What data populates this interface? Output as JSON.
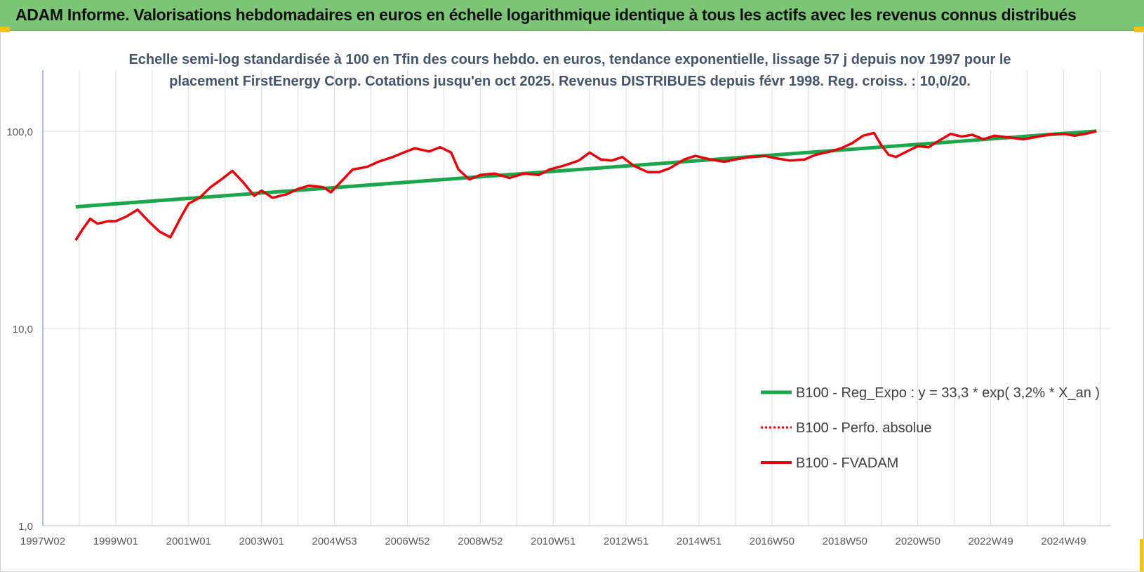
{
  "banner": {
    "title": "ADAM Informe. Valorisations hebdomadaires en euros en échelle logarithmique identique à tous les actifs avec les revenus connus distribués"
  },
  "colors": {
    "banner_bg": "#7cc576",
    "trend": "#1aa64a",
    "series": "#e8000b",
    "corner_marks": "#f2c21b"
  },
  "chart_data": {
    "type": "line",
    "subtitle_lines": [
      "Echelle semi-log standardisée à 100 en Tfin des cours hebdo. en euros, tendance exponentielle, lissage 57 j depuis nov 1997 pour le",
      "placement FirstEnergy Corp. Cotations jusqu'en oct 2025.  Revenus DISTRIBUES depuis févr 1998.  Reg. croiss. : 10,0/20."
    ],
    "y_scale": "log",
    "ylim": [
      1,
      200
    ],
    "y_ticks": [
      {
        "value": 1,
        "label": "1,0"
      },
      {
        "value": 10,
        "label": "10,0"
      },
      {
        "value": 100,
        "label": "100,0"
      }
    ],
    "x_range": [
      1997.0,
      2026.3
    ],
    "x_ticks": [
      {
        "value": 1997.0,
        "label": "1997W02"
      },
      {
        "value": 1999.0,
        "label": "1999W01"
      },
      {
        "value": 2001.0,
        "label": "2001W01"
      },
      {
        "value": 2003.0,
        "label": "2003W01"
      },
      {
        "value": 2005.0,
        "label": "2004W53"
      },
      {
        "value": 2007.0,
        "label": "2006W52"
      },
      {
        "value": 2009.0,
        "label": "2008W52"
      },
      {
        "value": 2011.0,
        "label": "2010W51"
      },
      {
        "value": 2013.0,
        "label": "2012W51"
      },
      {
        "value": 2015.0,
        "label": "2014W51"
      },
      {
        "value": 2017.0,
        "label": "2016W50"
      },
      {
        "value": 2019.0,
        "label": "2018W50"
      },
      {
        "value": 2021.0,
        "label": "2020W50"
      },
      {
        "value": 2023.0,
        "label": "2022W49"
      },
      {
        "value": 2025.0,
        "label": "2024W49"
      }
    ],
    "grid": "vertical",
    "legend_position": "bottom-right",
    "series": [
      {
        "name": "B100 - Reg_Expo : y = 33,3 * exp( 3,2% *  X_an )",
        "style": "solid-thick",
        "color": "#1aa64a",
        "x": [
          1997.9,
          2025.9
        ],
        "y": [
          41.4,
          100.2
        ]
      },
      {
        "name": "B100 - Perfo. absolue",
        "style": "dotted",
        "color": "#e8000b",
        "x": [
          1997.9,
          1998.1,
          1998.3,
          1998.5,
          1998.8,
          1999.0,
          1999.3,
          1999.6,
          1999.9,
          2000.2,
          2000.5,
          2000.8,
          2001.0,
          2001.3,
          2001.6,
          2001.9,
          2002.2,
          2002.5,
          2002.8,
          2003.0,
          2003.3,
          2003.7,
          2004.0,
          2004.3,
          2004.7,
          2004.9,
          2005.2,
          2005.5,
          2005.9,
          2006.2,
          2006.6,
          2006.9,
          2007.2,
          2007.6,
          2007.9,
          2008.2,
          2008.4,
          2008.7,
          2009.0,
          2009.4,
          2009.8,
          2010.2,
          2010.6,
          2010.9,
          2011.3,
          2011.7,
          2012.0,
          2012.3,
          2012.6,
          2012.9,
          2013.2,
          2013.6,
          2013.9,
          2014.2,
          2014.6,
          2014.9,
          2015.3,
          2015.7,
          2016.0,
          2016.4,
          2016.8,
          2017.1,
          2017.5,
          2017.9,
          2018.2,
          2018.6,
          2018.9,
          2019.2,
          2019.5,
          2019.8,
          2020.0,
          2020.2,
          2020.4,
          2020.7,
          2021.0,
          2021.3,
          2021.6,
          2021.9,
          2022.2,
          2022.5,
          2022.8,
          2023.1,
          2023.5,
          2023.9,
          2024.3,
          2024.7,
          2025.0,
          2025.3,
          2025.6,
          2025.9
        ],
        "y": [
          28,
          32,
          36,
          34,
          35,
          35,
          37,
          40,
          35,
          31,
          29,
          37,
          43,
          46,
          52,
          57,
          63,
          55,
          47,
          50,
          46,
          48,
          51,
          53,
          52,
          49,
          56,
          64,
          66,
          70,
          74,
          78,
          82,
          79,
          83,
          78,
          64,
          57,
          60,
          61,
          58,
          61,
          60,
          64,
          67,
          71,
          78,
          72,
          71,
          74,
          67,
          62,
          62,
          65,
          72,
          75,
          72,
          70,
          72,
          74,
          75,
          73,
          71,
          72,
          76,
          79,
          82,
          87,
          95,
          98,
          85,
          76,
          74,
          79,
          84,
          83,
          90,
          97,
          94,
          96,
          91,
          95,
          93,
          91,
          94,
          97,
          97,
          95,
          97,
          100
        ]
      },
      {
        "name": "B100 - FVADAM",
        "style": "solid",
        "color": "#e8000b",
        "x": [
          1997.9,
          1998.1,
          1998.3,
          1998.5,
          1998.8,
          1999.0,
          1999.3,
          1999.6,
          1999.9,
          2000.2,
          2000.5,
          2000.8,
          2001.0,
          2001.3,
          2001.6,
          2001.9,
          2002.2,
          2002.5,
          2002.8,
          2003.0,
          2003.3,
          2003.7,
          2004.0,
          2004.3,
          2004.7,
          2004.9,
          2005.2,
          2005.5,
          2005.9,
          2006.2,
          2006.6,
          2006.9,
          2007.2,
          2007.6,
          2007.9,
          2008.2,
          2008.4,
          2008.7,
          2009.0,
          2009.4,
          2009.8,
          2010.2,
          2010.6,
          2010.9,
          2011.3,
          2011.7,
          2012.0,
          2012.3,
          2012.6,
          2012.9,
          2013.2,
          2013.6,
          2013.9,
          2014.2,
          2014.6,
          2014.9,
          2015.3,
          2015.7,
          2016.0,
          2016.4,
          2016.8,
          2017.1,
          2017.5,
          2017.9,
          2018.2,
          2018.6,
          2018.9,
          2019.2,
          2019.5,
          2019.8,
          2020.0,
          2020.2,
          2020.4,
          2020.7,
          2021.0,
          2021.3,
          2021.6,
          2021.9,
          2022.2,
          2022.5,
          2022.8,
          2023.1,
          2023.5,
          2023.9,
          2024.3,
          2024.7,
          2025.0,
          2025.3,
          2025.6,
          2025.9
        ],
        "y": [
          28,
          32,
          36,
          34,
          35,
          35,
          37,
          40,
          35,
          31,
          29,
          37,
          43,
          46,
          52,
          57,
          63,
          55,
          47,
          50,
          46,
          48,
          51,
          53,
          52,
          49,
          56,
          64,
          66,
          70,
          74,
          78,
          82,
          79,
          83,
          78,
          64,
          57,
          60,
          61,
          58,
          61,
          60,
          64,
          67,
          71,
          78,
          72,
          71,
          74,
          67,
          62,
          62,
          65,
          72,
          75,
          72,
          70,
          72,
          74,
          75,
          73,
          71,
          72,
          76,
          79,
          82,
          87,
          95,
          98,
          85,
          76,
          74,
          79,
          84,
          83,
          90,
          97,
          94,
          96,
          91,
          95,
          93,
          91,
          94,
          97,
          97,
          95,
          97,
          100
        ]
      }
    ]
  }
}
